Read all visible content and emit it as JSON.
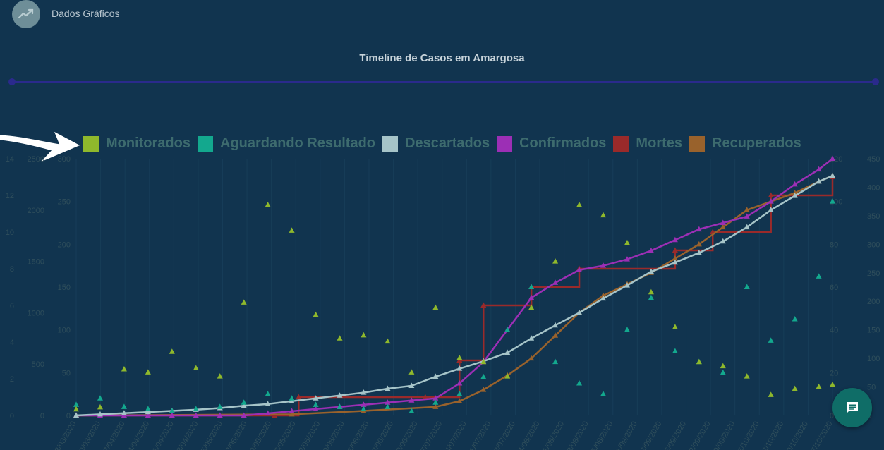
{
  "header": {
    "title": "Dados Gráficos",
    "icon": "trend-line-icon"
  },
  "fab": {
    "icon": "chat-icon"
  },
  "colors": {
    "monitorados": "#8fb82c",
    "aguardando": "#13a88e",
    "descartados": "#a6c4c8",
    "confirmados": "#9c2fb5",
    "mortes": "#9a2a2a",
    "recuperados": "#99622c",
    "axis_text": "#2f4e5b"
  },
  "chart_data": {
    "type": "line",
    "title": "Timeline de Casos em Amargosa",
    "xlabel": "",
    "x_start": "23/03/2020",
    "x_end": "30/10/2020",
    "x_tick_labels": [
      "23/03/2020",
      "30/03/2020",
      "07/04/2020",
      "14/04/2020",
      "21/04/2020",
      "28/04/2020",
      "05/05/2020",
      "12/05/2020",
      "19/05/2020",
      "26/05/2020",
      "02/06/2020",
      "09/06/2020",
      "16/06/2020",
      "23/06/2020",
      "30/06/2020",
      "07/07/2020",
      "14/07/2020",
      "21/07/2020",
      "28/07/2020",
      "04/08/2020",
      "11/08/2020",
      "18/08/2020",
      "25/08/2020",
      "01/09/2020",
      "08/09/2020",
      "15/09/2020",
      "22/09/2020",
      "29/09/2020",
      "06/10/2020",
      "13/10/2020",
      "20/10/2020",
      "27/10/2020"
    ],
    "grid": true,
    "legend_position": "top",
    "y_axes": [
      {
        "side": "left",
        "ticks": [
          0,
          2,
          4,
          6,
          8,
          10,
          12,
          14
        ],
        "range": [
          0,
          14
        ]
      },
      {
        "side": "left",
        "ticks": [
          0,
          500,
          1000,
          1500,
          2000,
          2500
        ],
        "range": [
          0,
          2500
        ]
      },
      {
        "side": "left",
        "ticks": [
          0,
          50,
          100,
          150,
          200,
          250,
          300
        ],
        "range": [
          0,
          300
        ]
      },
      {
        "side": "right",
        "ticks": [
          0,
          20,
          40,
          60,
          80,
          100,
          120
        ],
        "range": [
          0,
          120
        ]
      },
      {
        "side": "right",
        "ticks": [
          0,
          50,
          100,
          150,
          200,
          250,
          300,
          350,
          400,
          450
        ],
        "range": [
          0,
          450
        ]
      }
    ],
    "series": [
      {
        "name": "Monitorados",
        "style": "points",
        "axis": 1,
        "x": [
          "2020-03-23",
          "2020-03-30",
          "2020-04-06",
          "2020-04-13",
          "2020-04-20",
          "2020-04-27",
          "2020-05-04",
          "2020-05-11",
          "2020-05-18",
          "2020-05-25",
          "2020-06-01",
          "2020-06-08",
          "2020-06-15",
          "2020-06-22",
          "2020-06-29",
          "2020-07-06",
          "2020-07-13",
          "2020-07-20",
          "2020-07-27",
          "2020-08-03",
          "2020-08-10",
          "2020-08-17",
          "2020-08-24",
          "2020-08-31",
          "2020-09-07",
          "2020-09-14",
          "2020-09-21",
          "2020-09-28",
          "2020-10-05",
          "2020-10-12",
          "2020-10-19",
          "2020-10-26",
          "2020-10-30"
        ],
        "values": [
          60,
          80,
          450,
          420,
          620,
          460,
          380,
          1100,
          2050,
          1800,
          980,
          750,
          780,
          720,
          420,
          1050,
          560,
          520,
          380,
          1050,
          1500,
          2050,
          1950,
          1680,
          1200,
          860,
          520,
          480,
          380,
          200,
          260,
          280,
          300
        ]
      },
      {
        "name": "Aguardando Resultado",
        "style": "points",
        "axis": 3,
        "x": [
          "2020-03-23",
          "2020-03-30",
          "2020-04-06",
          "2020-04-13",
          "2020-04-20",
          "2020-04-27",
          "2020-05-04",
          "2020-05-11",
          "2020-05-18",
          "2020-05-25",
          "2020-06-01",
          "2020-06-08",
          "2020-06-15",
          "2020-06-22",
          "2020-06-29",
          "2020-07-06",
          "2020-07-13",
          "2020-07-20",
          "2020-07-27",
          "2020-08-03",
          "2020-08-10",
          "2020-08-17",
          "2020-08-24",
          "2020-08-31",
          "2020-09-07",
          "2020-09-14",
          "2020-09-21",
          "2020-09-28",
          "2020-10-05",
          "2020-10-12",
          "2020-10-19",
          "2020-10-26",
          "2020-10-30"
        ],
        "values": [
          5,
          8,
          4,
          3,
          2,
          3,
          4,
          6,
          10,
          8,
          5,
          4,
          3,
          4,
          2,
          6,
          10,
          18,
          40,
          60,
          25,
          15,
          10,
          40,
          55,
          30,
          25,
          20,
          60,
          35,
          45,
          65,
          100
        ]
      },
      {
        "name": "Descartados",
        "style": "line",
        "axis": 4,
        "x": [
          "2020-03-23",
          "2020-03-30",
          "2020-04-06",
          "2020-04-13",
          "2020-04-20",
          "2020-04-27",
          "2020-05-04",
          "2020-05-11",
          "2020-05-18",
          "2020-05-25",
          "2020-06-01",
          "2020-06-08",
          "2020-06-15",
          "2020-06-22",
          "2020-06-29",
          "2020-07-06",
          "2020-07-13",
          "2020-07-20",
          "2020-07-27",
          "2020-08-03",
          "2020-08-10",
          "2020-08-17",
          "2020-08-24",
          "2020-08-31",
          "2020-09-07",
          "2020-09-14",
          "2020-09-21",
          "2020-09-28",
          "2020-10-05",
          "2020-10-12",
          "2020-10-19",
          "2020-10-26",
          "2020-10-30"
        ],
        "values": [
          0,
          2,
          4,
          6,
          8,
          10,
          13,
          17,
          20,
          25,
          30,
          35,
          40,
          47,
          52,
          68,
          82,
          95,
          110,
          135,
          158,
          180,
          205,
          228,
          252,
          268,
          285,
          305,
          330,
          360,
          385,
          410,
          420
        ]
      },
      {
        "name": "Confirmados",
        "style": "line",
        "axis": 3,
        "x": [
          "2020-03-23",
          "2020-03-30",
          "2020-04-06",
          "2020-04-13",
          "2020-04-20",
          "2020-04-27",
          "2020-05-04",
          "2020-05-11",
          "2020-05-18",
          "2020-05-25",
          "2020-06-01",
          "2020-06-08",
          "2020-06-15",
          "2020-06-22",
          "2020-06-29",
          "2020-07-06",
          "2020-07-13",
          "2020-07-20",
          "2020-07-27",
          "2020-08-03",
          "2020-08-10",
          "2020-08-17",
          "2020-08-24",
          "2020-08-31",
          "2020-09-07",
          "2020-09-14",
          "2020-09-21",
          "2020-09-28",
          "2020-10-05",
          "2020-10-12",
          "2020-10-19",
          "2020-10-26",
          "2020-10-30"
        ],
        "values": [
          0,
          0,
          0,
          0,
          0,
          0,
          0,
          0,
          1,
          2,
          3,
          4,
          5,
          6,
          7,
          8,
          15,
          25,
          40,
          55,
          62,
          68,
          70,
          73,
          77,
          82,
          87,
          90,
          93,
          100,
          108,
          115,
          120
        ]
      },
      {
        "name": "Mortes",
        "style": "line",
        "axis": 0,
        "x": [
          "2020-03-23",
          "2020-05-20",
          "2020-05-27",
          "2020-07-03",
          "2020-07-13",
          "2020-07-20",
          "2020-08-03",
          "2020-08-17",
          "2020-09-14",
          "2020-09-25",
          "2020-10-12",
          "2020-10-30"
        ],
        "values": [
          0,
          0,
          1,
          1,
          3,
          6,
          7,
          8,
          9,
          10,
          12,
          13
        ]
      },
      {
        "name": "Recuperados",
        "style": "line",
        "axis": 4,
        "x": [
          "2020-03-23",
          "2020-05-25",
          "2020-06-15",
          "2020-07-06",
          "2020-07-13",
          "2020-07-20",
          "2020-07-27",
          "2020-08-03",
          "2020-08-10",
          "2020-08-17",
          "2020-08-24",
          "2020-08-31",
          "2020-09-07",
          "2020-09-14",
          "2020-09-21",
          "2020-09-28",
          "2020-10-05",
          "2020-10-12",
          "2020-10-19",
          "2020-10-26",
          "2020-10-30"
        ],
        "values": [
          0,
          2,
          8,
          15,
          25,
          45,
          70,
          100,
          140,
          180,
          210,
          230,
          250,
          275,
          300,
          330,
          360,
          375,
          390,
          410,
          420
        ]
      }
    ]
  }
}
